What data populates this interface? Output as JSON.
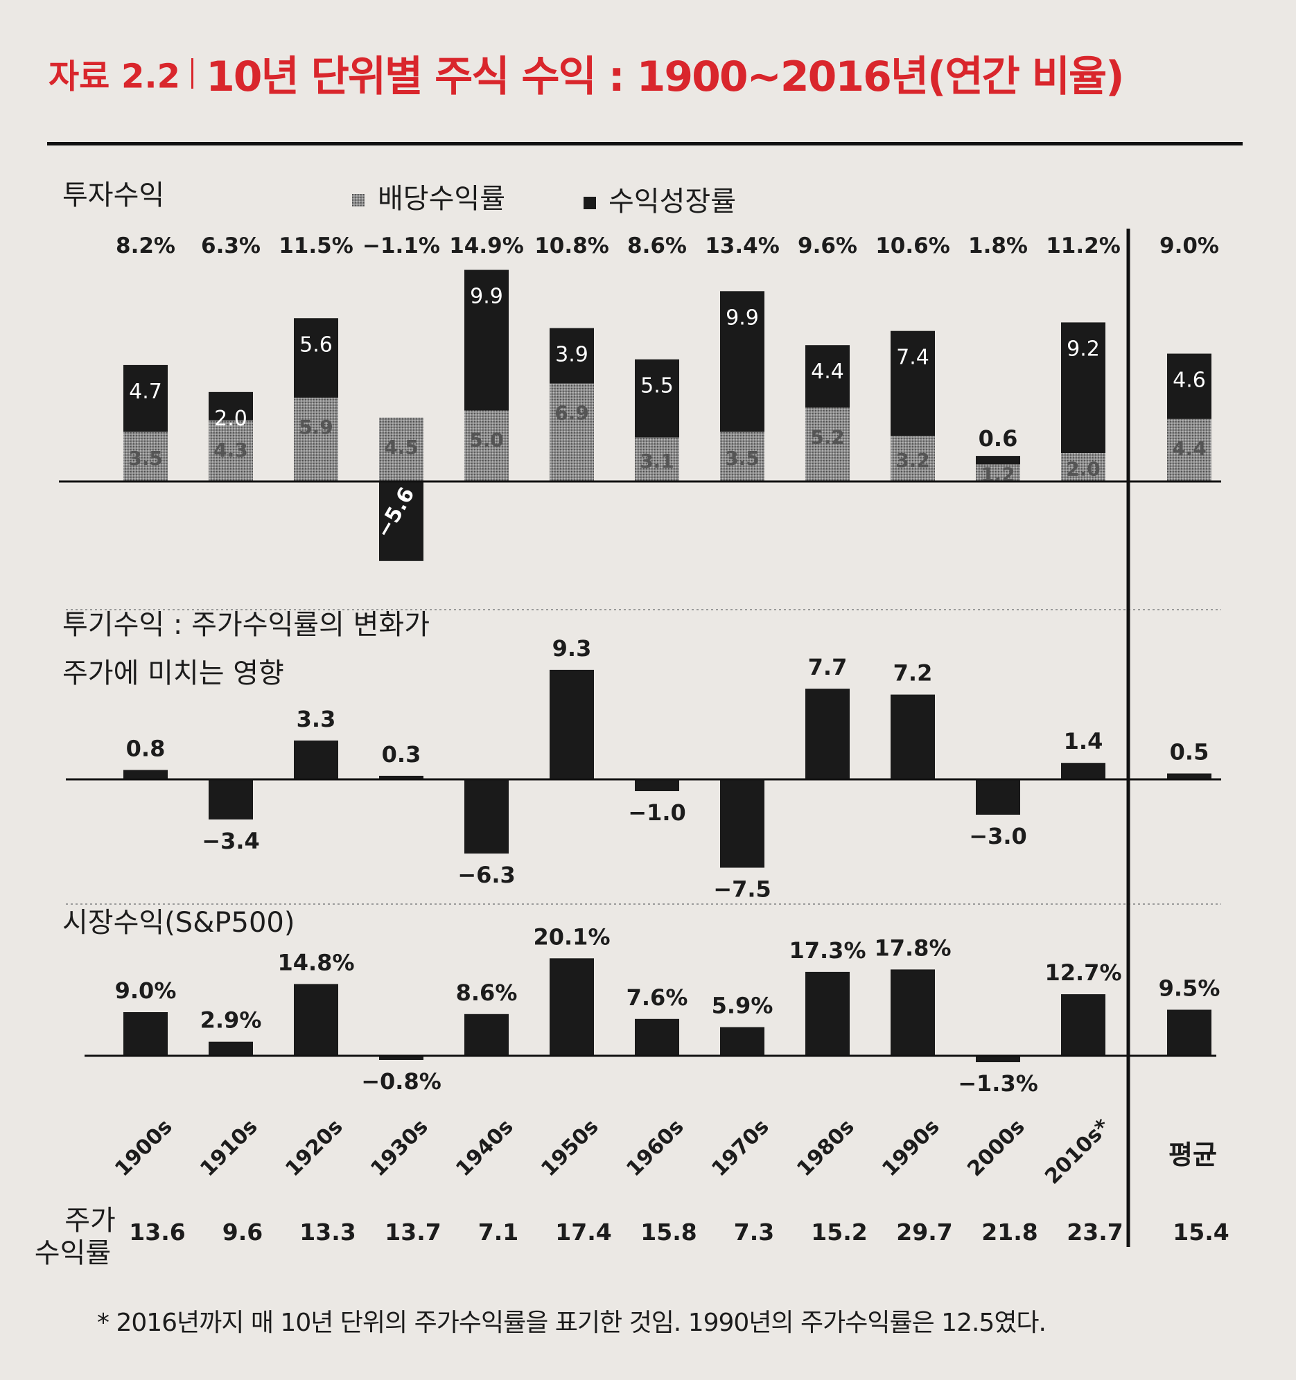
{
  "figure": {
    "label": "자료 2.2",
    "title": "10년 단위별 주식 수익 : 1900~2016년(연간 비율)",
    "footnote": "* 2016년까지 매 10년 단위의 주가수익률을 표기한 것임. 1990년의 주가수익률은 12.5였다."
  },
  "colors": {
    "title": "#d9262c",
    "bar_dark": "#1a1a1a",
    "bar_dividend": "#8c8c8c",
    "text": "#1c1c1c",
    "background": "#ebe8e4"
  },
  "chart_data": [
    {
      "type": "bar",
      "title": "투자수익",
      "stacked": true,
      "legend": [
        "배당수익률",
        "수익성장률"
      ],
      "legend_placement": "top-center",
      "categories": [
        "1900s",
        "1910s",
        "1920s",
        "1930s",
        "1940s",
        "1950s",
        "1960s",
        "1970s",
        "1980s",
        "1990s",
        "2000s",
        "2010s*",
        "평균"
      ],
      "totals": [
        "8.2%",
        "6.3%",
        "11.5%",
        "−1.1%",
        "14.9%",
        "10.8%",
        "8.6%",
        "13.4%",
        "9.6%",
        "10.6%",
        "1.8%",
        "11.2%",
        "9.0%"
      ],
      "series": [
        {
          "name": "배당수익률",
          "values": [
            3.5,
            4.3,
            5.9,
            4.5,
            5.0,
            6.9,
            3.1,
            3.5,
            5.2,
            3.2,
            1.2,
            2.0,
            4.4
          ],
          "labels": [
            "3.5",
            "4.3",
            "5.9",
            "4.5",
            "5.0",
            "6.9",
            "3.1",
            "3.5",
            "5.2",
            "3.2",
            "1.2",
            "2.0",
            "4.4"
          ]
        },
        {
          "name": "수익성장률",
          "values": [
            4.7,
            2.0,
            5.6,
            -5.6,
            9.9,
            3.9,
            5.5,
            9.9,
            4.4,
            7.4,
            0.6,
            9.2,
            4.6
          ],
          "labels": [
            "4.7",
            "2.0",
            "5.6",
            "−5.6",
            "9.9",
            "3.9",
            "5.5",
            "9.9",
            "4.4",
            "7.4",
            "0.6",
            "9.2",
            "4.6"
          ]
        }
      ],
      "grid": false
    },
    {
      "type": "bar",
      "title": "투기수익 : 주가수익률의 변화가 주가에 미치는 영향",
      "categories": [
        "1900s",
        "1910s",
        "1920s",
        "1930s",
        "1940s",
        "1950s",
        "1960s",
        "1970s",
        "1980s",
        "1990s",
        "2000s",
        "2010s*",
        "평균"
      ],
      "values": [
        0.8,
        -3.4,
        3.3,
        0.3,
        -6.3,
        9.3,
        -1.0,
        -7.5,
        7.7,
        7.2,
        -3.0,
        1.4,
        0.5
      ],
      "labels": [
        "0.8",
        "−3.4",
        "3.3",
        "0.3",
        "−6.3",
        "9.3",
        "−1.0",
        "−7.5",
        "7.7",
        "7.2",
        "−3.0",
        "1.4",
        "0.5"
      ],
      "grid": false
    },
    {
      "type": "bar",
      "title": "시장수익(S&P500)",
      "categories": [
        "1900s",
        "1910s",
        "1920s",
        "1930s",
        "1940s",
        "1950s",
        "1960s",
        "1970s",
        "1980s",
        "1990s",
        "2000s",
        "2010s*",
        "평균"
      ],
      "values": [
        9.0,
        2.9,
        14.8,
        -0.8,
        8.6,
        20.1,
        7.6,
        5.9,
        17.3,
        17.8,
        -1.3,
        12.7,
        9.5
      ],
      "labels": [
        "9.0%",
        "2.9%",
        "14.8%",
        "−0.8%",
        "8.6%",
        "20.1%",
        "7.6%",
        "5.9%",
        "17.3%",
        "17.8%",
        "−1.3%",
        "12.7%",
        "9.5%"
      ],
      "grid": false
    },
    {
      "type": "table",
      "row_label": "주가 수익률",
      "categories": [
        "1900s",
        "1910s",
        "1920s",
        "1930s",
        "1940s",
        "1950s",
        "1960s",
        "1970s",
        "1980s",
        "1990s",
        "2000s",
        "2010s*",
        "평균"
      ],
      "values": [
        "13.6",
        "9.6",
        "13.3",
        "13.7",
        "7.1",
        "17.4",
        "15.8",
        "7.3",
        "15.2",
        "29.7",
        "21.8",
        "23.7",
        "15.4"
      ]
    }
  ]
}
